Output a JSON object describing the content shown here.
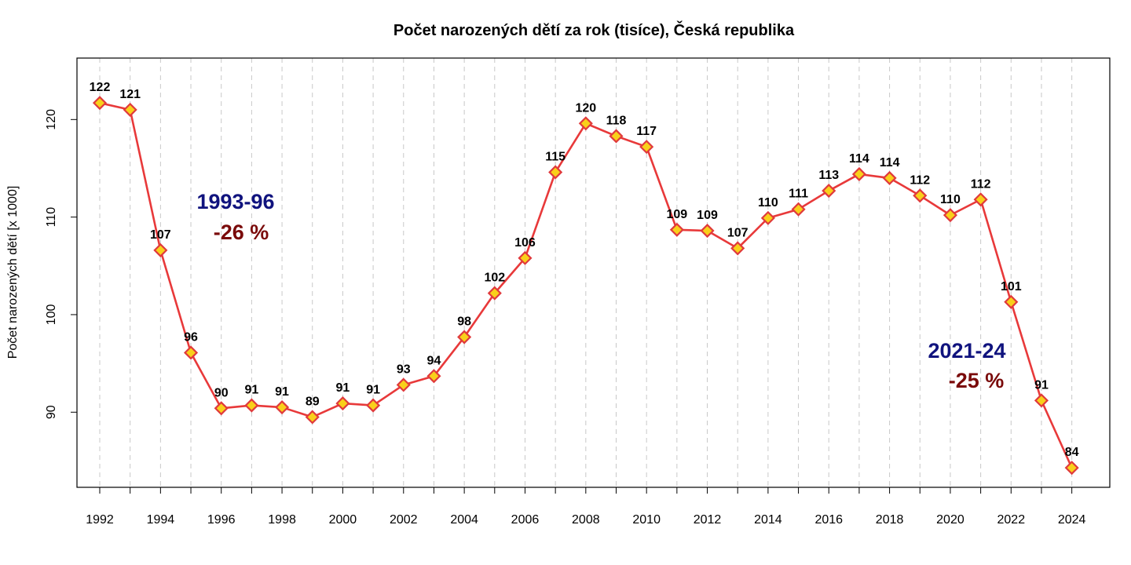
{
  "chart_data": {
    "type": "line",
    "title": "Počet narozených dětí za rok (tisíce), Česká republika",
    "xlabel": "",
    "ylabel": "Počet narozených dětí [x 1000]",
    "x": [
      1992,
      1993,
      1994,
      1995,
      1996,
      1997,
      1998,
      1999,
      2000,
      2001,
      2002,
      2003,
      2004,
      2005,
      2006,
      2007,
      2008,
      2009,
      2010,
      2011,
      2012,
      2013,
      2014,
      2015,
      2016,
      2017,
      2018,
      2019,
      2020,
      2021,
      2022,
      2023,
      2024
    ],
    "values": [
      121.7,
      121.0,
      106.6,
      96.1,
      90.4,
      90.7,
      90.5,
      89.5,
      90.9,
      90.7,
      92.8,
      93.7,
      97.7,
      102.2,
      105.8,
      114.6,
      119.6,
      118.3,
      117.2,
      108.7,
      108.6,
      106.8,
      109.9,
      110.8,
      112.7,
      114.4,
      114.0,
      112.2,
      110.2,
      111.8,
      101.3,
      91.2,
      84.3
    ],
    "labels": [
      "122",
      "121",
      "107",
      "96",
      "90",
      "91",
      "91",
      "89",
      "91",
      "91",
      "93",
      "94",
      "98",
      "102",
      "106",
      "115",
      "120",
      "118",
      "117",
      "109",
      "109",
      "107",
      "110",
      "111",
      "113",
      "114",
      "114",
      "112",
      "110",
      "112",
      "101",
      "91",
      "84"
    ],
    "xticks": [
      1992,
      1994,
      1996,
      1998,
      2000,
      2002,
      2004,
      2006,
      2008,
      2010,
      2012,
      2014,
      2016,
      2018,
      2020,
      2022,
      2024
    ],
    "xtick_labels": [
      "1992",
      "1994",
      "1996",
      "1998",
      "2000",
      "2002",
      "2004",
      "2006",
      "2008",
      "2010",
      "2012",
      "2014",
      "2016",
      "2018",
      "2020",
      "2022",
      "2024"
    ],
    "yticks": [
      90,
      100,
      110,
      120
    ],
    "ytick_labels": [
      "90",
      "100",
      "110",
      "120"
    ],
    "xlim": [
      1991.25,
      2025.25
    ],
    "ylim": [
      82.3,
      126.3
    ],
    "grid": "vertical dashed lines at every year",
    "legend": "none",
    "annotations": [
      {
        "period": "1993-96",
        "change": "-26 %"
      },
      {
        "period": "2021-24",
        "change": "-25 %"
      }
    ],
    "colors": {
      "line": "#e8393a",
      "marker_fill": "#f9d01a",
      "marker_edge": "#e03a3c",
      "grid": "#c8c8c8",
      "annot_period": "#10137e",
      "annot_change": "#7a0a0a"
    }
  }
}
